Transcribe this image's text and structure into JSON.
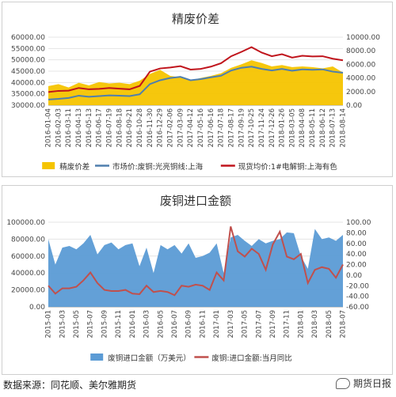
{
  "chart_data": [
    {
      "type": "bar+line",
      "title": "精废价差",
      "x": [
        "2016-01-04",
        "2016-02-03",
        "2016-03-11",
        "2016-04-13",
        "2016-05-13",
        "2016-06-17",
        "2016-07-19",
        "2016-08-18",
        "2016-09-21",
        "2016-10-28",
        "2016-11-30",
        "2016-12-29",
        "2017-02-06",
        "2017-03-09",
        "2017-04-12",
        "2017-05-16",
        "2017-06-16",
        "2017-07-18",
        "2017-08-17",
        "2017-09-19",
        "2017-10-25",
        "2017-11-24",
        "2017-12-26",
        "2018-01-26",
        "2018-03-05",
        "2018-04-08",
        "2018-05-11",
        "2018-06-12",
        "2018-07-13",
        "2018-08-14"
      ],
      "left_axis": {
        "ticks": [
          "30000.00",
          "35000.00",
          "40000.00",
          "45000.00",
          "50000.00",
          "55000.00",
          "60000.00"
        ],
        "ylim": [
          30000,
          60000
        ]
      },
      "right_axis": {
        "ticks": [
          "0.00",
          "2000.00",
          "4000.00",
          "6000.00",
          "8000.00",
          "10000.00"
        ],
        "ylim": [
          0,
          10000
        ]
      },
      "series": [
        {
          "name": "精废价差",
          "kind": "area",
          "axis": "right",
          "color": "#f5c400",
          "values": [
            2800,
            3100,
            2600,
            3300,
            2900,
            3400,
            3200,
            3300,
            3100,
            3600,
            4600,
            5200,
            4300,
            4100,
            3600,
            4000,
            4300,
            4700,
            5500,
            6000,
            6600,
            6200,
            5700,
            5900,
            5600,
            5700,
            5600,
            5400,
            5700,
            4800
          ]
        },
        {
          "name": "市场价:废铜:光亮铜线:上海",
          "kind": "line",
          "axis": "left",
          "color": "#4f7fae",
          "values": [
            32500,
            32800,
            33200,
            34200,
            33700,
            34000,
            34300,
            34200,
            34000,
            34800,
            39300,
            41000,
            42000,
            42500,
            41000,
            41500,
            42300,
            43000,
            45300,
            46500,
            47000,
            46000,
            45300,
            46000,
            45200,
            45800,
            45600,
            45800,
            44800,
            44300
          ]
        },
        {
          "name": "现货均价:1#电解铜:上海有色",
          "kind": "line",
          "axis": "left",
          "color": "#c0141c",
          "values": [
            35800,
            36300,
            36400,
            37600,
            37000,
            37200,
            37600,
            37300,
            37000,
            38500,
            44800,
            46200,
            46600,
            47200,
            45700,
            46000,
            47000,
            48500,
            51600,
            53500,
            55600,
            53200,
            51600,
            52500,
            51000,
            51800,
            51500,
            51600,
            50500,
            49800
          ]
        }
      ]
    },
    {
      "type": "area+line",
      "title": "废铜进口金额",
      "x": [
        "2015-01",
        "2015-02",
        "2015-03",
        "2015-04",
        "2015-05",
        "2015-06",
        "2015-07",
        "2015-08",
        "2015-09",
        "2015-10",
        "2015-11",
        "2015-12",
        "2016-01",
        "2016-02",
        "2016-03",
        "2016-04",
        "2016-05",
        "2016-06",
        "2016-07",
        "2016-08",
        "2016-09",
        "2016-10",
        "2016-11",
        "2016-12",
        "2017-01",
        "2017-02",
        "2017-03",
        "2017-04",
        "2017-05",
        "2017-06",
        "2017-07",
        "2017-08",
        "2017-09",
        "2017-10",
        "2017-11",
        "2017-12",
        "2018-01",
        "2018-02",
        "2018-03",
        "2018-04",
        "2018-05",
        "2018-06",
        "2018-07"
      ],
      "x_ticks": [
        "2015-01",
        "2015-03",
        "2015-05",
        "2015-07",
        "2015-09",
        "2015-11",
        "2016-01",
        "2016-03",
        "2016-05",
        "2016-07",
        "2016-09",
        "2016-11",
        "2017-01",
        "2017-03",
        "2017-05",
        "2017-07",
        "2017-09",
        "2017-11",
        "2018-01",
        "2018-03",
        "2018-05",
        "2018-07"
      ],
      "left_axis": {
        "ticks": [
          "0.00",
          "20000.00",
          "40000.00",
          "60000.00",
          "80000.00",
          "100000.00"
        ],
        "ylim": [
          0,
          100000
        ]
      },
      "right_axis": {
        "ticks": [
          "-60.00",
          "-40.00",
          "-20.00",
          "0.00",
          "20.00",
          "40.00",
          "60.00",
          "80.00",
          "100.00"
        ],
        "ylim": [
          -60,
          100
        ]
      },
      "series": [
        {
          "name": "废铜进口金额（万美元）",
          "kind": "area",
          "axis": "left",
          "color": "#5b9bd5",
          "values": [
            80000,
            50000,
            70000,
            72000,
            68000,
            75000,
            85000,
            62000,
            73000,
            76000,
            68000,
            73000,
            75000,
            48000,
            70000,
            40000,
            73000,
            68000,
            73000,
            63000,
            75000,
            58000,
            60000,
            64000,
            75000,
            40000,
            82000,
            85000,
            78000,
            72000,
            80000,
            75000,
            78000,
            80000,
            88000,
            87000,
            60000,
            45000,
            92000,
            80000,
            82000,
            78000,
            85000
          ]
        },
        {
          "name": "废铜:进口金额:当月同比",
          "kind": "line",
          "axis": "right",
          "color": "#c0504d",
          "values": [
            -20,
            -35,
            -25,
            -25,
            -22,
            -10,
            5,
            -15,
            -28,
            -30,
            -30,
            -28,
            -35,
            -36,
            -20,
            -32,
            -30,
            -32,
            -38,
            -20,
            -22,
            -18,
            -20,
            -28,
            5,
            -10,
            92,
            45,
            35,
            50,
            40,
            10,
            58,
            82,
            35,
            30,
            40,
            -15,
            10,
            15,
            12,
            -5,
            20
          ]
        }
      ]
    }
  ],
  "footer": {
    "source": "数据来源：同花顺、美尔雅期货"
  },
  "watermark": {
    "text": "期货日报",
    "icon": "chat-bubble-icon"
  }
}
